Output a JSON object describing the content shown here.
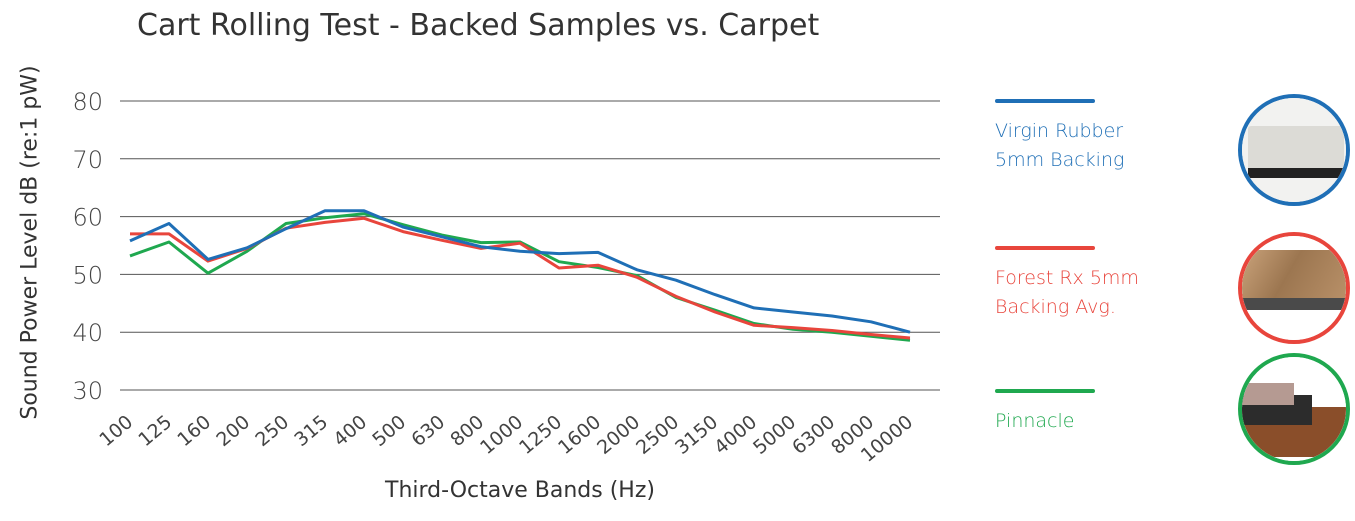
{
  "chart_data": {
    "type": "line",
    "title": "Cart Rolling Test - Backed Samples vs. Carpet",
    "xlabel": "Third-Octave Bands (Hz)",
    "ylabel": "Sound Power Level dB (re:1 pW)",
    "ylim": [
      25,
      82
    ],
    "yticks": [
      30,
      40,
      50,
      60,
      70,
      80
    ],
    "grid": true,
    "legend_position": "right",
    "categories": [
      "100",
      "125",
      "160",
      "200",
      "250",
      "315",
      "400",
      "500",
      "630",
      "800",
      "1000",
      "1250",
      "1600",
      "2000",
      "2500",
      "3150",
      "4000",
      "5000",
      "6300",
      "8000",
      "10000"
    ],
    "series": [
      {
        "name": "Virgin Rubber 5mm Backing",
        "color": "#1f6fb6",
        "values": [
          55.8,
          58.8,
          52.6,
          54.6,
          57.9,
          61.0,
          61.0,
          58.2,
          56.5,
          54.8,
          54.0,
          53.6,
          53.8,
          50.8,
          49.0,
          46.5,
          44.2,
          43.5,
          42.8,
          41.8,
          40.0
        ]
      },
      {
        "name": "Forest Rx 5mm Backing Avg.",
        "color": "#e8453c",
        "values": [
          57.0,
          57.0,
          52.3,
          54.5,
          58.0,
          59.0,
          59.7,
          57.4,
          55.9,
          54.5,
          55.4,
          51.1,
          51.6,
          49.5,
          46.2,
          43.5,
          41.2,
          40.8,
          40.3,
          39.6,
          39.0
        ]
      },
      {
        "name": "Pinnacle",
        "color": "#1fa84f",
        "values": [
          53.2,
          55.6,
          50.2,
          54.0,
          58.8,
          59.8,
          60.5,
          58.6,
          56.8,
          55.5,
          55.6,
          52.2,
          51.2,
          49.8,
          46.0,
          43.8,
          41.5,
          40.5,
          40.0,
          39.3,
          38.6
        ]
      }
    ]
  },
  "legend": [
    {
      "label": "Virgin Rubber 5mm Backing",
      "color": "#1f6fb6",
      "icon": "virgin-rubber-sample-icon"
    },
    {
      "label": "Forest Rx 5mm Backing Avg.",
      "color": "#e8453c",
      "icon": "forest-rx-sample-icon"
    },
    {
      "label": "Pinnacle",
      "color": "#1fa84f",
      "icon": "pinnacle-sample-icon"
    }
  ]
}
